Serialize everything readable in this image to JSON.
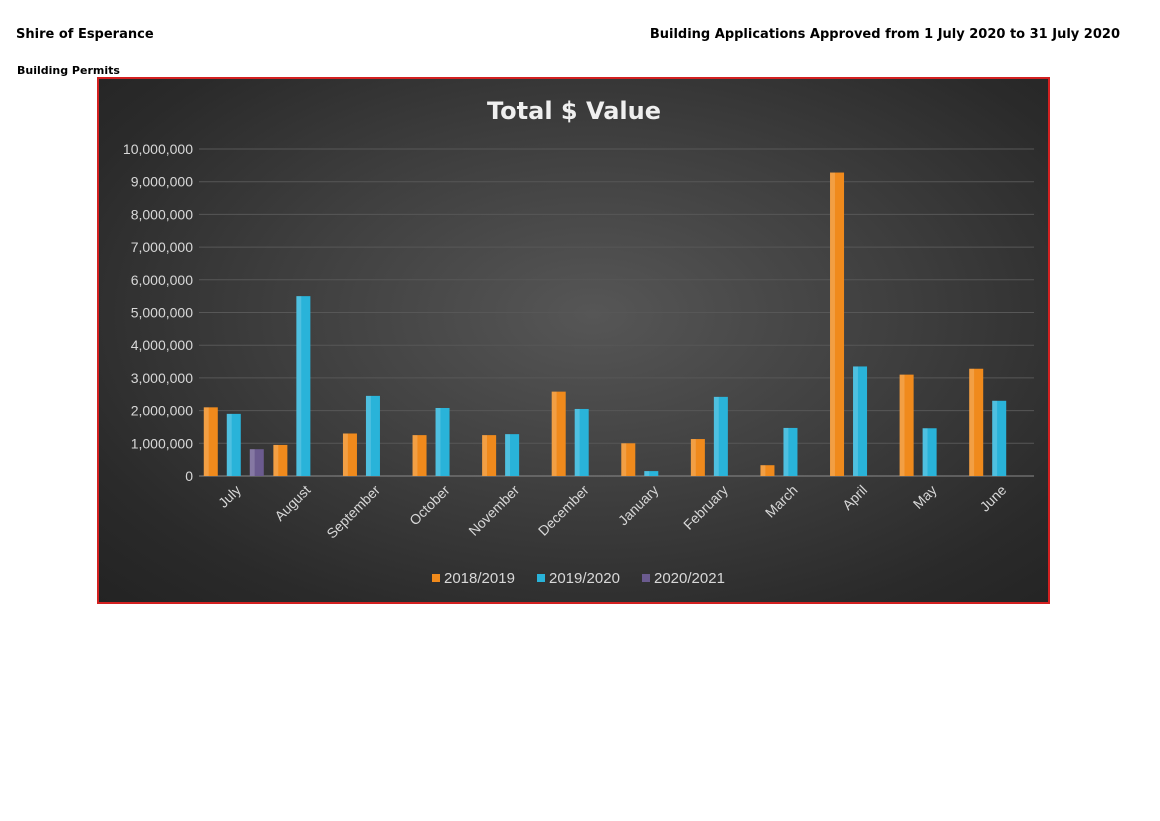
{
  "page": {
    "organisation": "Shire of Esperance",
    "report_title": "Building Applications Approved from 1 July 2020 to 31 July 2020",
    "section": "Building Permits"
  },
  "colors": {
    "series_2018_2019": "#f08a1c",
    "series_2019_2020": "#29b3d9",
    "series_2020_2021": "#6b5b8f",
    "axis_text": "#d8d8d8",
    "title_text": "#efefef",
    "gridline": "#575757",
    "frame_border": "#d32020"
  },
  "chart_data": {
    "type": "bar",
    "title": "Total $ Value",
    "xlabel": "",
    "ylabel": "",
    "ylim": [
      0,
      10000000
    ],
    "yticks": [
      0,
      1000000,
      2000000,
      3000000,
      4000000,
      5000000,
      6000000,
      7000000,
      8000000,
      9000000,
      10000000
    ],
    "ytick_labels": [
      "0",
      "1,000,000",
      "2,000,000",
      "3,000,000",
      "4,000,000",
      "5,000,000",
      "6,000,000",
      "7,000,000",
      "8,000,000",
      "9,000,000",
      "10,000,000"
    ],
    "grid": true,
    "legend_position": "bottom",
    "categories": [
      "July",
      "August",
      "September",
      "October",
      "November",
      "December",
      "January",
      "February",
      "March",
      "April",
      "May",
      "June"
    ],
    "series": [
      {
        "name": "2018/2019",
        "color": "#f08a1c",
        "values": [
          2100000,
          950000,
          1300000,
          1250000,
          1250000,
          2580000,
          1000000,
          1130000,
          330000,
          9280000,
          3100000,
          3280000
        ]
      },
      {
        "name": "2019/2020",
        "color": "#29b3d9",
        "values": [
          1900000,
          5500000,
          2450000,
          2080000,
          1280000,
          2050000,
          150000,
          2420000,
          1470000,
          3350000,
          1460000,
          2300000
        ]
      },
      {
        "name": "2020/2021",
        "color": "#6b5b8f",
        "values": [
          820000,
          null,
          null,
          null,
          null,
          null,
          null,
          null,
          null,
          null,
          null,
          null
        ]
      }
    ]
  }
}
